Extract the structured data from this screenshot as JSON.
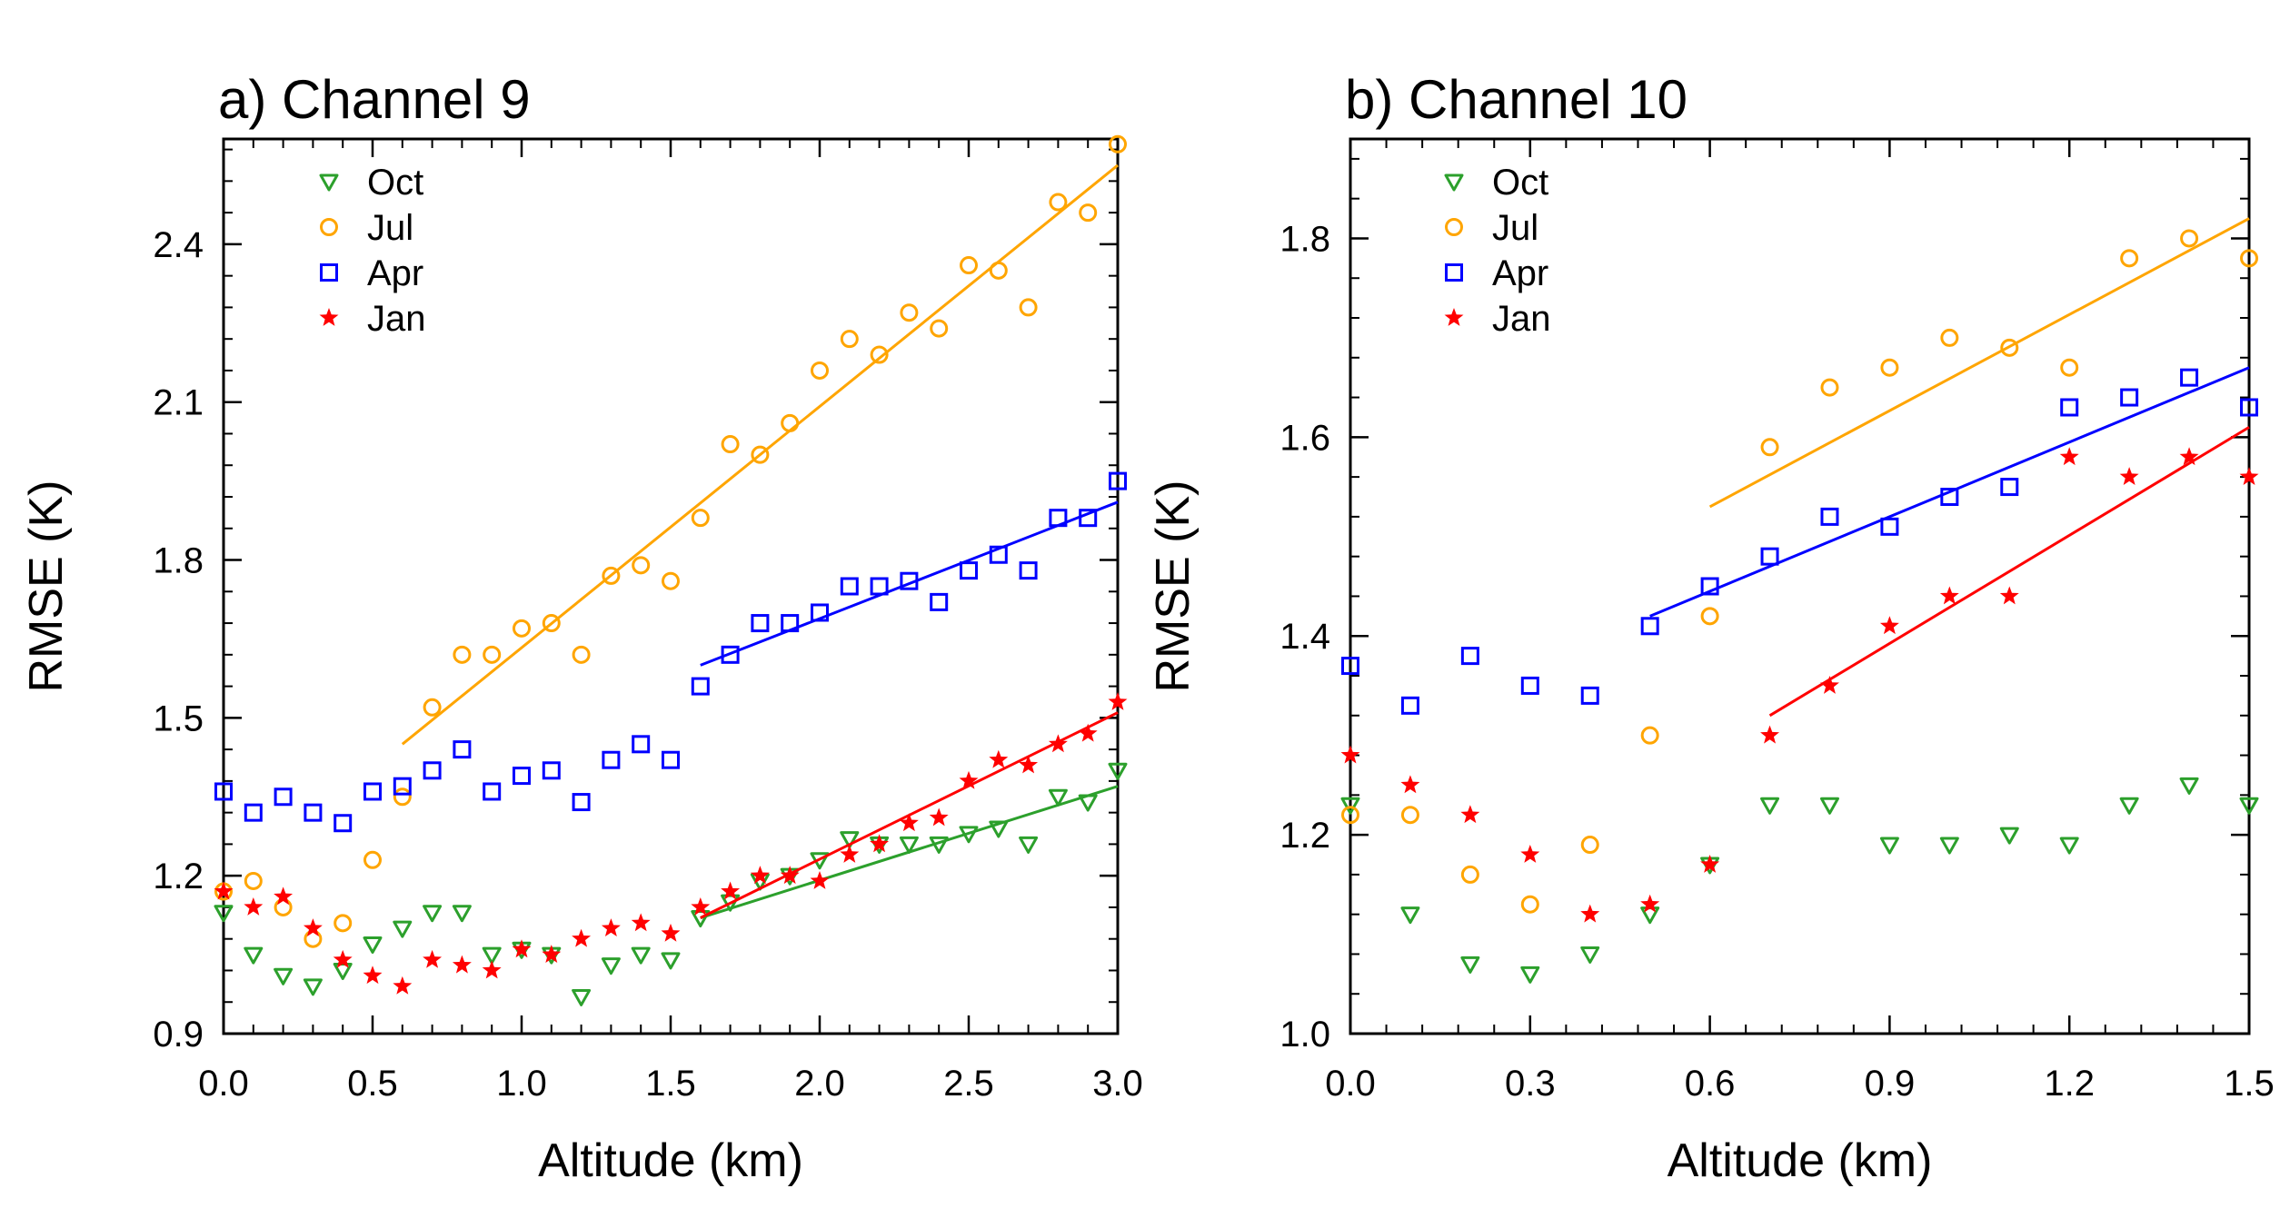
{
  "chart_data": [
    {
      "type": "scatter",
      "title": "a) Channel 9",
      "xlabel": "Altitude (km)",
      "ylabel": "RMSE (K)",
      "xlim": [
        0,
        3.0
      ],
      "ylim": [
        0.9,
        2.6
      ],
      "xticks": [
        0,
        0.5,
        1.0,
        1.5,
        2.0,
        2.5,
        3.0
      ],
      "xtick_labels": [
        "0.0",
        "0.5",
        "1.0",
        "1.5",
        "2.0",
        "2.5",
        "3.0"
      ],
      "yticks": [
        0.9,
        1.2,
        1.5,
        1.8,
        2.1,
        2.4
      ],
      "ytick_labels": [
        "0.9",
        "1.2",
        "1.5",
        "1.8",
        "2.1",
        "2.4"
      ],
      "legend_position": "top-left",
      "series": [
        {
          "name": "Oct",
          "marker": "triangle-down",
          "color": "#2ca02c",
          "x": [
            0,
            0.1,
            0.2,
            0.3,
            0.4,
            0.5,
            0.6,
            0.7,
            0.8,
            0.9,
            1.0,
            1.1,
            1.2,
            1.3,
            1.4,
            1.5,
            1.6,
            1.7,
            1.8,
            1.9,
            2.0,
            2.1,
            2.2,
            2.3,
            2.4,
            2.5,
            2.6,
            2.7,
            2.8,
            2.9,
            3.0
          ],
          "y": [
            1.13,
            1.05,
            1.01,
            0.99,
            1.02,
            1.07,
            1.1,
            1.13,
            1.13,
            1.05,
            1.06,
            1.05,
            0.97,
            1.03,
            1.05,
            1.04,
            1.12,
            1.15,
            1.19,
            1.2,
            1.23,
            1.27,
            1.26,
            1.26,
            1.26,
            1.28,
            1.29,
            1.26,
            1.35,
            1.34,
            1.4
          ],
          "fit": {
            "x": [
              1.6,
              3.0
            ],
            "y": [
              1.12,
              1.37
            ]
          }
        },
        {
          "name": "Jul",
          "marker": "circle",
          "color": "#ffa500",
          "x": [
            0,
            0.1,
            0.2,
            0.3,
            0.4,
            0.5,
            0.6,
            0.7,
            0.8,
            0.9,
            1.0,
            1.1,
            1.2,
            1.3,
            1.4,
            1.5,
            1.6,
            1.7,
            1.8,
            1.9,
            2.0,
            2.1,
            2.2,
            2.3,
            2.4,
            2.5,
            2.6,
            2.7,
            2.8,
            2.9,
            3.0
          ],
          "y": [
            1.17,
            1.19,
            1.14,
            1.08,
            1.11,
            1.23,
            1.35,
            1.52,
            1.62,
            1.62,
            1.67,
            1.68,
            1.62,
            1.77,
            1.79,
            1.76,
            1.88,
            2.02,
            2.0,
            2.06,
            2.16,
            2.22,
            2.19,
            2.27,
            2.24,
            2.36,
            2.35,
            2.28,
            2.48,
            2.46,
            2.59
          ],
          "fit": {
            "x": [
              0.6,
              3.0
            ],
            "y": [
              1.45,
              2.55
            ]
          }
        },
        {
          "name": "Apr",
          "marker": "square",
          "color": "#0000ff",
          "x": [
            0,
            0.1,
            0.2,
            0.3,
            0.4,
            0.5,
            0.6,
            0.7,
            0.8,
            0.9,
            1.0,
            1.1,
            1.2,
            1.3,
            1.4,
            1.5,
            1.6,
            1.7,
            1.8,
            1.9,
            2.0,
            2.1,
            2.2,
            2.3,
            2.4,
            2.5,
            2.6,
            2.7,
            2.8,
            2.9,
            3.0
          ],
          "y": [
            1.36,
            1.32,
            1.35,
            1.32,
            1.3,
            1.36,
            1.37,
            1.4,
            1.44,
            1.36,
            1.39,
            1.4,
            1.34,
            1.42,
            1.45,
            1.42,
            1.56,
            1.62,
            1.68,
            1.68,
            1.7,
            1.75,
            1.75,
            1.76,
            1.72,
            1.78,
            1.81,
            1.78,
            1.88,
            1.88,
            1.95
          ],
          "fit": {
            "x": [
              1.6,
              3.0
            ],
            "y": [
              1.6,
              1.91
            ]
          }
        },
        {
          "name": "Jan",
          "marker": "star",
          "color": "#ff0000",
          "x": [
            0,
            0.1,
            0.2,
            0.3,
            0.4,
            0.5,
            0.6,
            0.7,
            0.8,
            0.9,
            1.0,
            1.1,
            1.2,
            1.3,
            1.4,
            1.5,
            1.6,
            1.7,
            1.8,
            1.9,
            2.0,
            2.1,
            2.2,
            2.3,
            2.4,
            2.5,
            2.6,
            2.7,
            2.8,
            2.9,
            3.0
          ],
          "y": [
            1.17,
            1.14,
            1.16,
            1.1,
            1.04,
            1.01,
            0.99,
            1.04,
            1.03,
            1.02,
            1.06,
            1.05,
            1.08,
            1.1,
            1.11,
            1.09,
            1.14,
            1.17,
            1.2,
            1.2,
            1.19,
            1.24,
            1.26,
            1.3,
            1.31,
            1.38,
            1.42,
            1.41,
            1.45,
            1.47,
            1.53
          ],
          "fit": {
            "x": [
              1.6,
              3.0
            ],
            "y": [
              1.12,
              1.51
            ]
          }
        }
      ]
    },
    {
      "type": "scatter",
      "title": "b) Channel 10",
      "xlabel": "Altitude (km)",
      "ylabel": "RMSE (K)",
      "xlim": [
        0,
        1.5
      ],
      "ylim": [
        1.0,
        1.9
      ],
      "xticks": [
        0,
        0.3,
        0.6,
        0.9,
        1.2,
        1.5
      ],
      "xtick_labels": [
        "0.0",
        "0.3",
        "0.6",
        "0.9",
        "1.2",
        "1.5"
      ],
      "yticks": [
        1.0,
        1.2,
        1.4,
        1.6,
        1.8
      ],
      "ytick_labels": [
        "1.0",
        "1.2",
        "1.4",
        "1.6",
        "1.8"
      ],
      "legend_position": "top-left",
      "series": [
        {
          "name": "Oct",
          "marker": "triangle-down",
          "color": "#2ca02c",
          "x": [
            0,
            0.1,
            0.2,
            0.3,
            0.4,
            0.5,
            0.6,
            0.7,
            0.8,
            0.9,
            1.0,
            1.1,
            1.2,
            1.3,
            1.4,
            1.5
          ],
          "y": [
            1.23,
            1.12,
            1.07,
            1.06,
            1.08,
            1.12,
            1.17,
            1.23,
            1.23,
            1.19,
            1.19,
            1.2,
            1.19,
            1.23,
            1.25,
            1.23
          ]
        },
        {
          "name": "Jul",
          "marker": "circle",
          "color": "#ffa500",
          "x": [
            0,
            0.1,
            0.2,
            0.3,
            0.4,
            0.5,
            0.6,
            0.7,
            0.8,
            0.9,
            1.0,
            1.1,
            1.2,
            1.3,
            1.4,
            1.5
          ],
          "y": [
            1.22,
            1.22,
            1.16,
            1.13,
            1.19,
            1.3,
            1.42,
            1.59,
            1.65,
            1.67,
            1.7,
            1.69,
            1.67,
            1.78,
            1.8,
            1.78
          ],
          "fit": {
            "x": [
              0.6,
              1.5
            ],
            "y": [
              1.53,
              1.82
            ]
          }
        },
        {
          "name": "Apr",
          "marker": "square",
          "color": "#0000ff",
          "x": [
            0,
            0.1,
            0.2,
            0.3,
            0.4,
            0.5,
            0.6,
            0.7,
            0.8,
            0.9,
            1.0,
            1.1,
            1.2,
            1.3,
            1.4,
            1.5
          ],
          "y": [
            1.37,
            1.33,
            1.38,
            1.35,
            1.34,
            1.41,
            1.45,
            1.48,
            1.52,
            1.51,
            1.54,
            1.55,
            1.63,
            1.64,
            1.66,
            1.63
          ],
          "fit": {
            "x": [
              0.5,
              1.5
            ],
            "y": [
              1.42,
              1.67
            ]
          }
        },
        {
          "name": "Jan",
          "marker": "star",
          "color": "#ff0000",
          "x": [
            0,
            0.1,
            0.2,
            0.3,
            0.4,
            0.5,
            0.6,
            0.7,
            0.8,
            0.9,
            1.0,
            1.1,
            1.2,
            1.3,
            1.4,
            1.5
          ],
          "y": [
            1.28,
            1.25,
            1.22,
            1.18,
            1.12,
            1.13,
            1.17,
            1.3,
            1.35,
            1.41,
            1.44,
            1.44,
            1.58,
            1.56,
            1.58,
            1.56
          ],
          "fit": {
            "x": [
              0.7,
              1.5
            ],
            "y": [
              1.32,
              1.61
            ]
          }
        }
      ]
    }
  ]
}
